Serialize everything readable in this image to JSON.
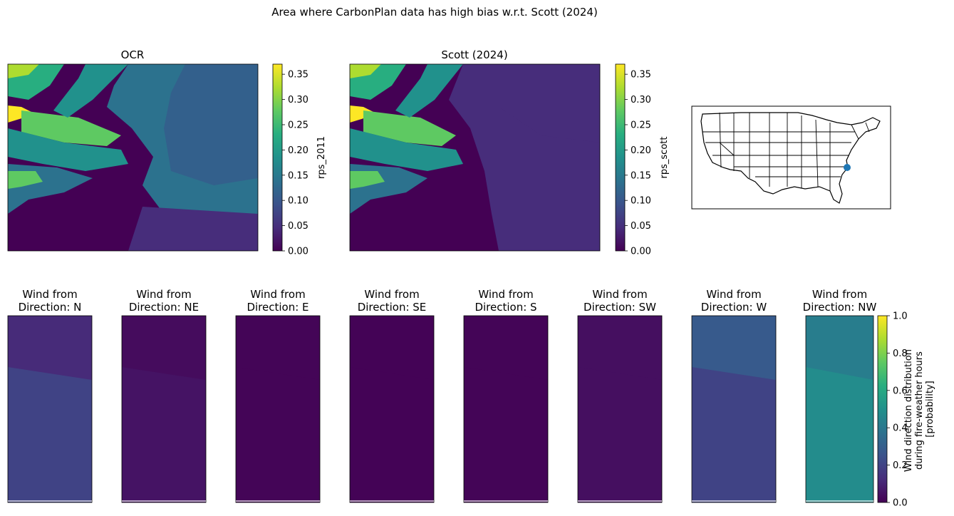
{
  "figure": {
    "title": "Area where CarbonPlan data has high bias w.r.t. Scott (2024)"
  },
  "colors": {
    "viridis": [
      "#440154",
      "#472d7b",
      "#3b528b",
      "#2c728e",
      "#21918c",
      "#28ae80",
      "#5ec962",
      "#addc30",
      "#fde725"
    ],
    "marker": "#1f77b4"
  },
  "chart_data": [
    {
      "type": "heatmap",
      "title": "OCR",
      "colorbar_label": "rps_2011",
      "vlim": [
        0,
        0.37
      ],
      "colorbar_ticks": [
        "0.00",
        "0.05",
        "0.10",
        "0.15",
        "0.20",
        "0.25",
        "0.30",
        "0.35"
      ]
    },
    {
      "type": "heatmap",
      "title": "Scott (2024)",
      "colorbar_label": "rps_scott",
      "vlim": [
        0,
        0.37
      ],
      "colorbar_ticks": [
        "0.00",
        "0.05",
        "0.10",
        "0.15",
        "0.20",
        "0.25",
        "0.30",
        "0.35"
      ]
    },
    {
      "type": "map",
      "region": "Contiguous United States (state boundaries)",
      "marker": "location point near eastern North Carolina coast"
    },
    {
      "type": "heatmap",
      "panels": [
        {
          "title": "Wind from\nDirection: N",
          "top_value": 0.12,
          "bottom_value": 0.2
        },
        {
          "title": "Wind from\nDirection: NE",
          "top_value": 0.03,
          "bottom_value": 0.05
        },
        {
          "title": "Wind from\nDirection: E",
          "top_value": 0.01,
          "bottom_value": 0.01
        },
        {
          "title": "Wind from\nDirection: SE",
          "top_value": 0.005,
          "bottom_value": 0.005
        },
        {
          "title": "Wind from\nDirection: S",
          "top_value": 0.01,
          "bottom_value": 0.01
        },
        {
          "title": "Wind from\nDirection: SW",
          "top_value": 0.04,
          "bottom_value": 0.04
        },
        {
          "title": "Wind from\nDirection: W",
          "top_value": 0.28,
          "bottom_value": 0.2
        },
        {
          "title": "Wind from\nDirection: NW",
          "top_value": 0.42,
          "bottom_value": 0.48
        }
      ],
      "colorbar_label": "Wind direction distribution\nduring fire-weather hours\n[probability]",
      "vlim": [
        0,
        1
      ],
      "colorbar_ticks": [
        "0.0",
        "0.2",
        "0.4",
        "0.6",
        "0.8",
        "1.0"
      ]
    }
  ]
}
